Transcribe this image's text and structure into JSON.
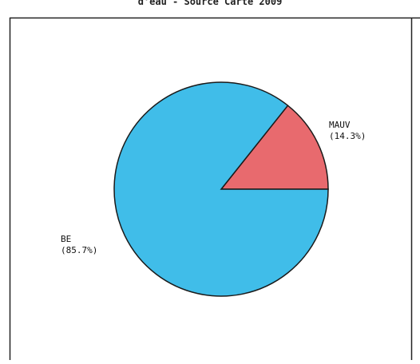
{
  "chart_data": {
    "type": "pie",
    "title": "d'eau - Source Carte 2009",
    "slices": [
      {
        "name": "MAUV",
        "label": "(14.3%)",
        "value": 14.3,
        "color": "#e86a6e"
      },
      {
        "name": "BE",
        "label": "(85.7%)",
        "value": 85.7,
        "color": "#40bde9"
      }
    ],
    "start_angle_deg": 0,
    "direction": "counterclockwise",
    "legend": "none"
  }
}
